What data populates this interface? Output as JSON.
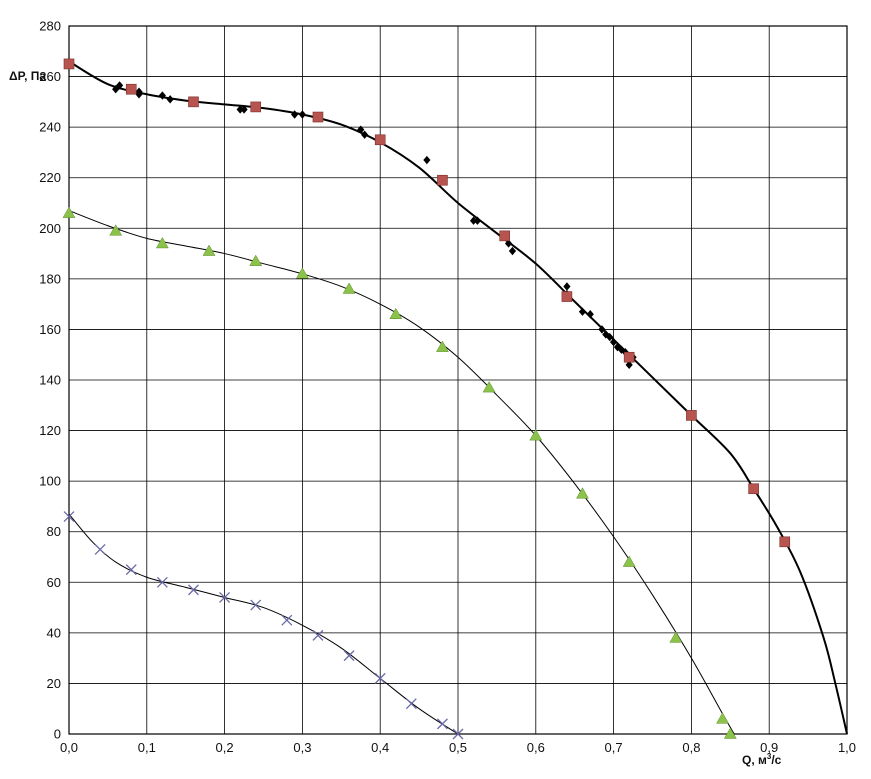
{
  "chart_data": {
    "type": "scatter",
    "title": "",
    "xlabel": {
      "base": "Q, м",
      "sup": "3",
      "tail": "/с"
    },
    "ylabel": "ΔP, Па",
    "xlim": [
      0,
      1.0
    ],
    "ylim": [
      0,
      280
    ],
    "x_ticks": [
      "0,0",
      "0,1",
      "0,2",
      "0,3",
      "0,4",
      "0,5",
      "0,6",
      "0,7",
      "0,8",
      "0,9",
      "1,0"
    ],
    "y_ticks": [
      "0",
      "20",
      "40",
      "60",
      "80",
      "100",
      "120",
      "140",
      "160",
      "180",
      "200",
      "220",
      "240",
      "260",
      "280"
    ],
    "grid": true,
    "legend": "none",
    "colors": {
      "black_points": "#000000",
      "red_squares": "#b85450",
      "green_triangles": "#8bc34a",
      "blue_crosses": "#6a6aa8",
      "curves": "#000000"
    },
    "series": [
      {
        "marker": "diamond",
        "color": "#000000",
        "points": [
          [
            0.06,
            255
          ],
          [
            0.065,
            256.5
          ],
          [
            0.09,
            253
          ],
          [
            0.09,
            254
          ],
          [
            0.12,
            252.5
          ],
          [
            0.13,
            251
          ],
          [
            0.16,
            250
          ],
          [
            0.22,
            247
          ],
          [
            0.225,
            247
          ],
          [
            0.29,
            245
          ],
          [
            0.3,
            245
          ],
          [
            0.375,
            239
          ],
          [
            0.38,
            237
          ],
          [
            0.46,
            227
          ],
          [
            0.52,
            203
          ],
          [
            0.525,
            203
          ],
          [
            0.565,
            194
          ],
          [
            0.57,
            191
          ],
          [
            0.64,
            177
          ],
          [
            0.64,
            174
          ],
          [
            0.66,
            167
          ],
          [
            0.67,
            166
          ],
          [
            0.685,
            160
          ],
          [
            0.69,
            158
          ],
          [
            0.695,
            157
          ],
          [
            0.7,
            155
          ],
          [
            0.705,
            153
          ],
          [
            0.71,
            152
          ],
          [
            0.715,
            151
          ],
          [
            0.72,
            146
          ],
          [
            0.725,
            149
          ]
        ]
      },
      {
        "marker": "square",
        "color": "#b85450",
        "points": [
          [
            0.0,
            265
          ],
          [
            0.08,
            255
          ],
          [
            0.16,
            250
          ],
          [
            0.24,
            248
          ],
          [
            0.32,
            244
          ],
          [
            0.4,
            235
          ],
          [
            0.48,
            219
          ],
          [
            0.56,
            197
          ],
          [
            0.64,
            173
          ],
          [
            0.72,
            149
          ],
          [
            0.8,
            126
          ],
          [
            0.88,
            97
          ],
          [
            0.92,
            76
          ]
        ]
      },
      {
        "marker": "triangle",
        "color": "#8bc34a",
        "points": [
          [
            0.0,
            206
          ],
          [
            0.06,
            199
          ],
          [
            0.12,
            194
          ],
          [
            0.18,
            191
          ],
          [
            0.24,
            187
          ],
          [
            0.3,
            182
          ],
          [
            0.36,
            176
          ],
          [
            0.42,
            166
          ],
          [
            0.48,
            153
          ],
          [
            0.54,
            137
          ],
          [
            0.6,
            118
          ],
          [
            0.66,
            95
          ],
          [
            0.72,
            68
          ],
          [
            0.78,
            38
          ],
          [
            0.84,
            6
          ],
          [
            0.85,
            0
          ]
        ]
      },
      {
        "marker": "cross",
        "color": "#6a6aa8",
        "points": [
          [
            0.0,
            86
          ],
          [
            0.04,
            73
          ],
          [
            0.08,
            65
          ],
          [
            0.12,
            60
          ],
          [
            0.16,
            57
          ],
          [
            0.2,
            54
          ],
          [
            0.24,
            51
          ],
          [
            0.28,
            45
          ],
          [
            0.32,
            39
          ],
          [
            0.36,
            31
          ],
          [
            0.4,
            22
          ],
          [
            0.44,
            12
          ],
          [
            0.48,
            4
          ],
          [
            0.5,
            0
          ]
        ]
      }
    ],
    "curves": [
      {
        "stroke_width": 2.0,
        "points": [
          [
            0.0,
            266
          ],
          [
            0.05,
            257
          ],
          [
            0.1,
            253
          ],
          [
            0.15,
            250.5
          ],
          [
            0.2,
            249
          ],
          [
            0.25,
            247.5
          ],
          [
            0.3,
            245
          ],
          [
            0.35,
            241
          ],
          [
            0.4,
            234
          ],
          [
            0.45,
            224
          ],
          [
            0.5,
            210
          ],
          [
            0.55,
            198
          ],
          [
            0.6,
            186
          ],
          [
            0.65,
            171
          ],
          [
            0.7,
            156
          ],
          [
            0.75,
            141
          ],
          [
            0.8,
            126
          ],
          [
            0.85,
            111
          ],
          [
            0.88,
            97
          ],
          [
            0.91,
            82
          ],
          [
            0.94,
            64
          ],
          [
            0.97,
            38
          ],
          [
            0.985,
            20
          ],
          [
            1.0,
            0
          ]
        ]
      },
      {
        "stroke_width": 1.0,
        "points": [
          [
            0.0,
            207
          ],
          [
            0.05,
            201
          ],
          [
            0.1,
            196
          ],
          [
            0.15,
            193
          ],
          [
            0.2,
            190
          ],
          [
            0.25,
            186
          ],
          [
            0.3,
            182
          ],
          [
            0.35,
            177
          ],
          [
            0.4,
            170
          ],
          [
            0.45,
            161
          ],
          [
            0.5,
            149
          ],
          [
            0.55,
            134
          ],
          [
            0.6,
            118
          ],
          [
            0.65,
            99
          ],
          [
            0.7,
            78
          ],
          [
            0.75,
            55
          ],
          [
            0.8,
            30
          ],
          [
            0.84,
            8
          ],
          [
            0.855,
            0
          ]
        ]
      },
      {
        "stroke_width": 1.0,
        "points": [
          [
            0.0,
            87
          ],
          [
            0.03,
            76
          ],
          [
            0.06,
            68
          ],
          [
            0.1,
            62
          ],
          [
            0.15,
            58
          ],
          [
            0.2,
            54
          ],
          [
            0.25,
            50
          ],
          [
            0.3,
            43
          ],
          [
            0.35,
            34
          ],
          [
            0.4,
            22
          ],
          [
            0.45,
            10
          ],
          [
            0.5,
            0
          ]
        ]
      }
    ]
  }
}
